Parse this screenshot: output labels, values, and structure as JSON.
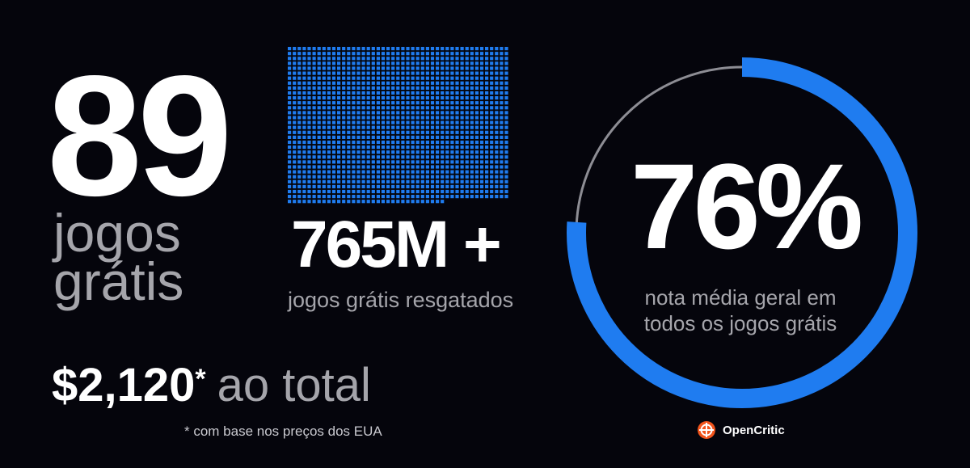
{
  "left": {
    "count": "89",
    "label_line1": "jogos",
    "label_line2": "grátis",
    "total_value": "$2,120",
    "total_star": "*",
    "total_text": "ao total",
    "footnote": "* com base nos preços dos EUA"
  },
  "middle": {
    "claimed_value": "765M +",
    "claimed_label": "jogos grátis resgatados"
  },
  "right": {
    "score_value": "76%",
    "score_fraction": 0.76,
    "score_label_line1": "nota média geral em",
    "score_label_line2": "todos os jogos grátis",
    "brand_name": "OpenCritic",
    "brand_icon": "opencritic-logo-icon"
  },
  "colors": {
    "background": "#05050c",
    "accent_blue": "#1f7cf0",
    "muted_text": "#a5a5ab",
    "brand_orange": "#f2541b"
  }
}
